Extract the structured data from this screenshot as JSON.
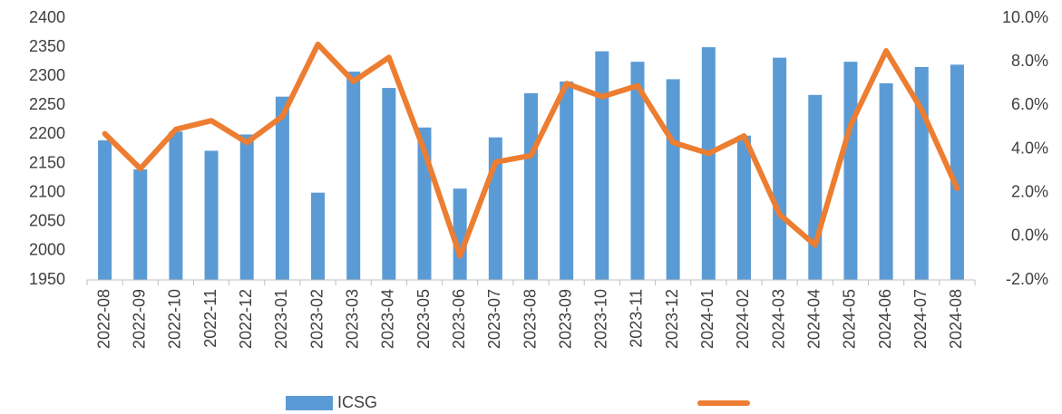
{
  "chart_data": {
    "type": "bar-line",
    "categories": [
      "2022-08",
      "2022-09",
      "2022-10",
      "2022-11",
      "2022-12",
      "2023-01",
      "2023-02",
      "2023-03",
      "2023-04",
      "2023-05",
      "2023-06",
      "2023-07",
      "2023-08",
      "2023-09",
      "2023-10",
      "2023-11",
      "2023-12",
      "2024-01",
      "2024-02",
      "2024-03",
      "2024-04",
      "2024-05",
      "2024-06",
      "2024-07",
      "2024-08"
    ],
    "series": [
      {
        "name": "ICSG",
        "type": "bar",
        "color": "#5b9bd5",
        "values": [
          2190,
          2140,
          2205,
          2172,
          2200,
          2265,
          2100,
          2308,
          2280,
          2212,
          2107,
          2195,
          2271,
          2291,
          2343,
          2325,
          2295,
          2350,
          2198,
          2332,
          2268,
          2325,
          2288,
          2316,
          2320
        ]
      },
      {
        "type": "line",
        "axis": "y2",
        "color": "#ed7d31",
        "values": [
          4.7,
          3.1,
          4.9,
          5.3,
          4.3,
          5.5,
          8.8,
          7.1,
          8.2,
          3.9,
          -0.9,
          3.4,
          3.7,
          7.0,
          6.4,
          6.9,
          4.3,
          3.8,
          4.6,
          1.0,
          -0.4,
          5.1,
          8.5,
          5.8,
          2.2
        ]
      }
    ],
    "ylim": [
      1950,
      2400
    ],
    "yticks": [
      1950,
      2000,
      2050,
      2100,
      2150,
      2200,
      2250,
      2300,
      2350,
      2400
    ],
    "y2lim": [
      -2,
      10
    ],
    "y2ticks": [
      {
        "value": -2,
        "label": "-2.0%"
      },
      {
        "value": 0,
        "label": "0.0%"
      },
      {
        "value": 2,
        "label": "2.0%"
      },
      {
        "value": 4,
        "label": "4.0%"
      },
      {
        "value": 6,
        "label": "6.0%"
      },
      {
        "value": 8,
        "label": "8.0%"
      },
      {
        "value": 10,
        "label": "10.0%"
      }
    ],
    "grid": false,
    "legend": "bottom"
  }
}
